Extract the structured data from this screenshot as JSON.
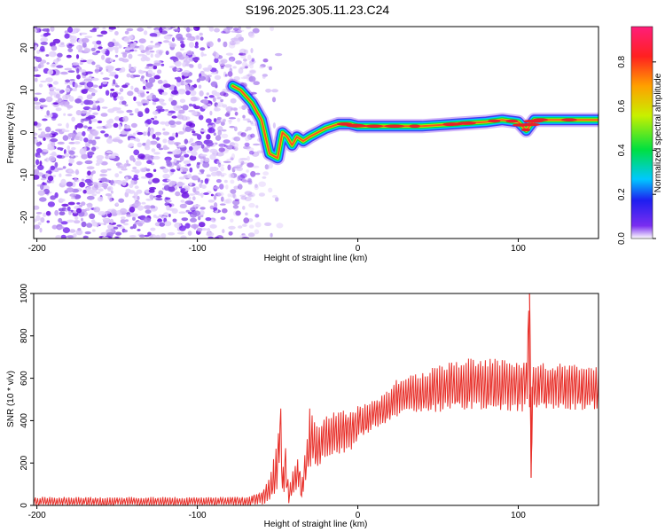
{
  "title": "S196.2025.305.11.23.C24",
  "chart_data": [
    {
      "type": "heatmap",
      "title": "S196.2025.305.11.23.C24",
      "xlabel": "Height of straight line (km)",
      "ylabel": "Frequency (Hz)",
      "xlim": [
        -202,
        150
      ],
      "ylim": [
        -25,
        25
      ],
      "xticks": [
        -200,
        -100,
        0,
        100
      ],
      "yticks": [
        -20,
        -10,
        0,
        10,
        20
      ],
      "colorbar": {
        "label": "Normalized spectral amplitude",
        "range": [
          0,
          0.96
        ],
        "ticks": [
          0,
          0.2,
          0.4,
          0.6,
          0.8
        ]
      },
      "noise_region_x": [
        -202,
        -65
      ],
      "ridge_trace": {
        "x": [
          -78,
          -73,
          -66,
          -60,
          -55,
          -50,
          -47,
          -44,
          -41,
          -38,
          -34,
          -30,
          -25,
          -20,
          -12,
          -5,
          0,
          20,
          40,
          60,
          80,
          90,
          100,
          105,
          110,
          130,
          150
        ],
        "freq_hz": [
          11,
          10,
          7,
          3,
          -5,
          -6,
          0,
          -1,
          -3,
          -1,
          -2,
          -1,
          0,
          1,
          2,
          2,
          1.5,
          1.5,
          1.5,
          2,
          2.5,
          3,
          2.5,
          0.5,
          3,
          3,
          3
        ]
      }
    },
    {
      "type": "line",
      "xlabel": "Height of straight line (km)",
      "ylabel": "SNR (10 * v/v)",
      "xlim": [
        -202,
        150
      ],
      "ylim": [
        0,
        1000
      ],
      "xticks": [
        -200,
        -100,
        0,
        100
      ],
      "yticks": [
        0,
        200,
        400,
        600,
        800,
        1000
      ],
      "series": [
        {
          "name": "SNR",
          "color": "#e8302a",
          "x": [
            -202,
            -150,
            -100,
            -70,
            -60,
            -55,
            -50,
            -48,
            -47,
            -45,
            -43,
            -40,
            -37,
            -35,
            -32,
            -30,
            -25,
            -20,
            -15,
            -10,
            -5,
            0,
            5,
            10,
            15,
            20,
            25,
            30,
            40,
            50,
            60,
            70,
            80,
            90,
            100,
            105,
            107,
            108,
            109,
            110,
            120,
            130,
            140,
            150
          ],
          "values": [
            15,
            15,
            15,
            20,
            40,
            80,
            180,
            380,
            90,
            200,
            40,
            120,
            150,
            60,
            220,
            300,
            280,
            320,
            330,
            350,
            340,
            380,
            400,
            420,
            440,
            460,
            500,
            510,
            520,
            540,
            550,
            560,
            550,
            545,
            540,
            550,
            990,
            130,
            560,
            550,
            545,
            555,
            550,
            560
          ],
          "envelope_min": [
            0,
            0,
            0,
            0,
            0,
            20,
            60,
            250,
            20,
            100,
            10,
            60,
            80,
            20,
            140,
            180,
            180,
            210,
            220,
            240,
            250,
            300,
            330,
            360,
            380,
            400,
            420,
            430,
            440,
            440,
            450,
            450,
            445,
            440,
            440,
            440,
            440,
            130,
            450,
            445,
            440,
            445,
            445,
            450
          ],
          "envelope_max": [
            40,
            40,
            40,
            40,
            60,
            140,
            300,
            480,
            160,
            280,
            90,
            180,
            230,
            110,
            300,
            470,
            380,
            430,
            440,
            470,
            440,
            470,
            480,
            500,
            520,
            560,
            600,
            610,
            630,
            660,
            680,
            700,
            700,
            690,
            680,
            700,
            1000,
            200,
            690,
            680,
            670,
            670,
            665,
            670
          ]
        }
      ]
    }
  ]
}
